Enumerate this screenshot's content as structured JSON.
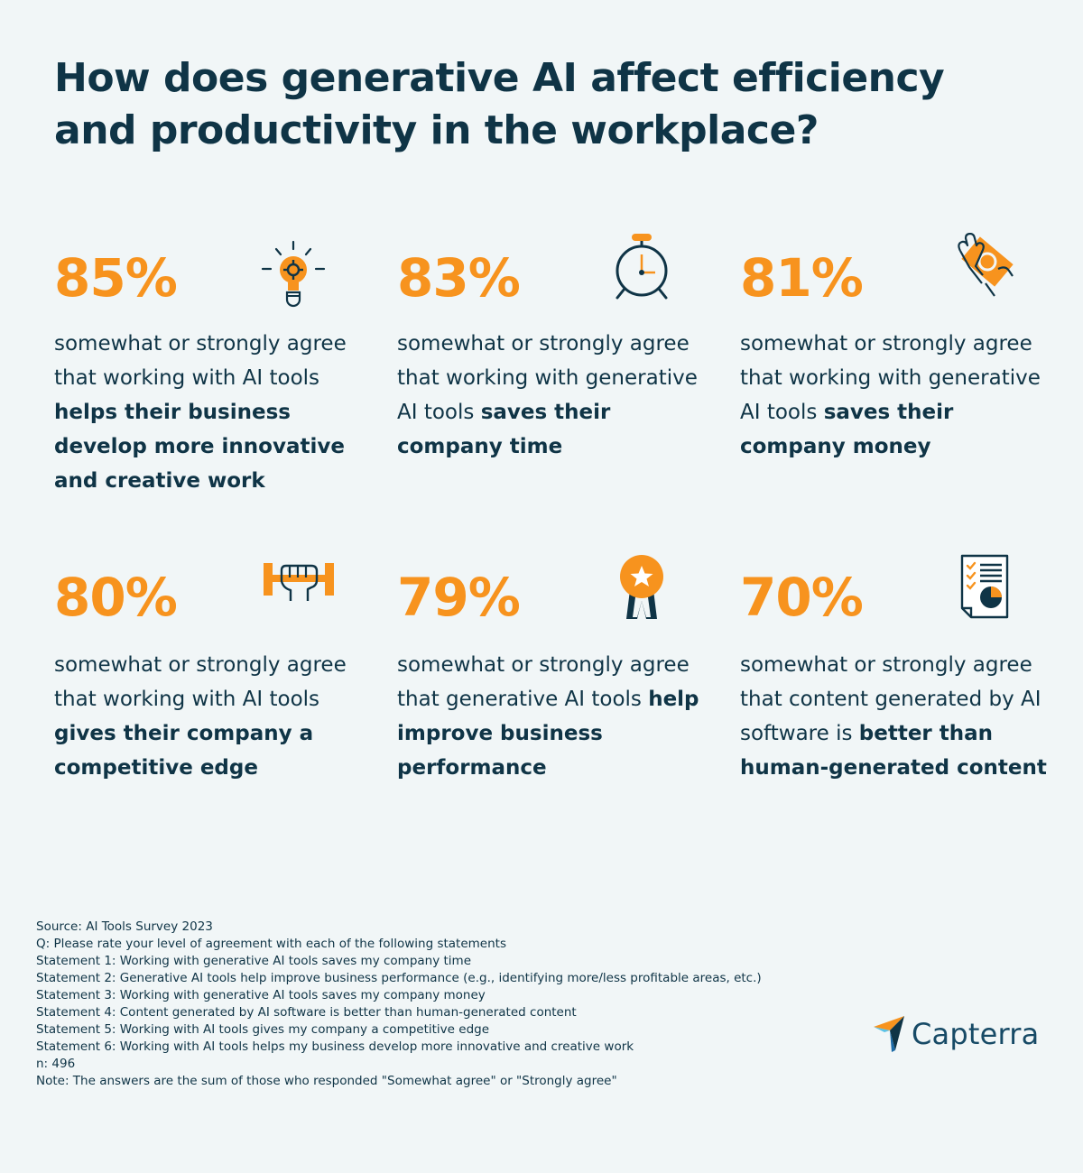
{
  "title": "How does generative AI affect efficiency and productivity in the workplace?",
  "stats": [
    {
      "pct": "85%",
      "pre": "somewhat or strongly agree that working with AI tools ",
      "bold": "helps their business develop more innovative and creative work",
      "icon": "lightbulb-gear-icon"
    },
    {
      "pct": "83%",
      "pre": "somewhat or strongly agree that working with generative AI tools ",
      "bold": "saves their company time",
      "icon": "alarm-clock-icon"
    },
    {
      "pct": "81%",
      "pre": "somewhat or strongly agree that working with generative AI tools ",
      "bold": "saves their company money",
      "icon": "hand-money-icon"
    },
    {
      "pct": "80%",
      "pre": "somewhat or strongly agree that working with AI tools ",
      "bold": "gives their company a competitive edge",
      "icon": "fist-dumbbell-icon"
    },
    {
      "pct": "79%",
      "pre": "somewhat or strongly agree that generative AI tools ",
      "bold": "help improve business performance",
      "icon": "award-ribbon-icon"
    },
    {
      "pct": "70%",
      "pre": "somewhat or strongly agree that content generated by AI software is ",
      "bold": "better than human-generated content",
      "icon": "report-pie-chart-icon"
    }
  ],
  "footer": [
    "Source: AI Tools Survey 2023",
    "Q: Please rate your level of agreement with each of the following statements",
    "Statement 1: Working with generative AI tools saves my company time",
    "Statement 2: Generative AI tools help improve business performance (e.g., identifying more/less profitable areas, etc.)",
    "Statement 3: Working with generative AI tools saves my company money",
    "Statement 4: Content generated by AI software is better than human-generated content",
    "Statement 5: Working with AI tools gives my company a competitive edge",
    "Statement 6: Working with AI tools helps my business develop more innovative and creative work",
    "n: 496",
    "Note: The answers are the sum of those who responded \"Somewhat agree\" or \"Strongly agree\""
  ],
  "logo": {
    "text": "Capterra"
  },
  "colors": {
    "accent": "#f7931e",
    "navy": "#0f3446",
    "background": "#f1f6f7"
  }
}
